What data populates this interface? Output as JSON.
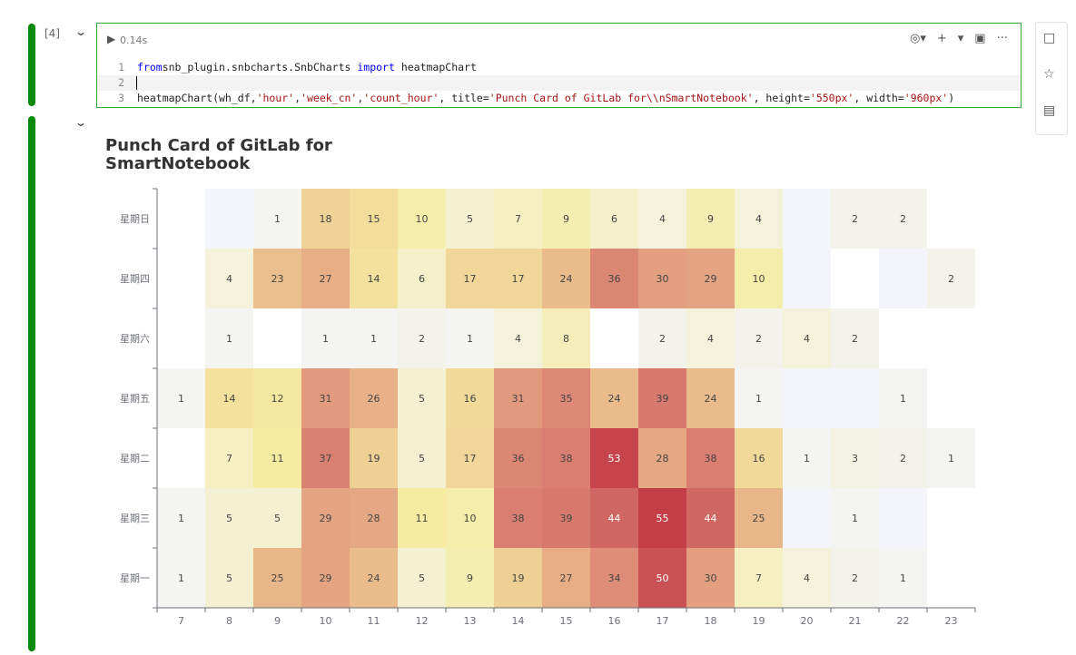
{
  "cell1": {
    "exec_count": "[4]",
    "run_time": "0.14s",
    "code_lines": [
      {
        "num": "1",
        "parts": [
          [
            "kw",
            "from"
          ],
          [
            "",
            "snb_plugin.snbcharts.SnbCharts "
          ],
          [
            "kw",
            "import"
          ],
          [
            "",
            " heatmapChart"
          ]
        ]
      },
      {
        "num": "2",
        "parts": []
      },
      {
        "num": "3",
        "parts": [
          [
            "",
            "heatmapChart(wh_df,"
          ],
          [
            "str",
            "'hour'"
          ],
          [
            "",
            ","
          ],
          [
            "str",
            "'week_cn'"
          ],
          [
            "",
            ","
          ],
          [
            "str",
            "'count_hour'"
          ],
          [
            "",
            ", title="
          ],
          [
            "str",
            "'Punch Card of GitLab for\\\\nSmartNotebook'"
          ],
          [
            "",
            ", height="
          ],
          [
            "str",
            "'550px'"
          ],
          [
            "",
            ", width="
          ],
          [
            "str",
            "'960px'"
          ],
          [
            "",
            ")"
          ]
        ]
      }
    ],
    "toolbar": {
      "eye_icon": "eye-icon",
      "add_icon": "plus-icon",
      "more_arrow_icon": "caret-down-icon",
      "delete_icon": "trash-icon",
      "menu_icon": "ellipsis-icon"
    }
  },
  "side_tools": [
    "comment-icon",
    "star-icon",
    "code-panel-icon"
  ],
  "chart_data": {
    "type": "heatmap",
    "title_lines": [
      "Punch Card of GitLab for",
      "SmartNotebook"
    ],
    "x": [
      "7",
      "8",
      "9",
      "10",
      "11",
      "12",
      "13",
      "14",
      "15",
      "16",
      "17",
      "18",
      "19",
      "20",
      "21",
      "22",
      "23"
    ],
    "y": [
      "星期日",
      "星期四",
      "星期六",
      "星期五",
      "星期二",
      "星期三",
      "星期一"
    ],
    "values": [
      [
        null,
        0,
        1,
        18,
        15,
        10,
        5,
        7,
        9,
        6,
        4,
        9,
        4,
        0,
        2,
        2,
        null
      ],
      [
        null,
        4,
        23,
        27,
        14,
        6,
        17,
        17,
        24,
        36,
        30,
        29,
        10,
        0,
        null,
        0,
        2
      ],
      [
        null,
        1,
        null,
        1,
        1,
        2,
        1,
        4,
        8,
        null,
        2,
        4,
        2,
        4,
        2,
        null,
        null
      ],
      [
        1,
        14,
        12,
        31,
        26,
        5,
        16,
        31,
        35,
        24,
        39,
        24,
        1,
        0,
        0,
        1,
        null
      ],
      [
        null,
        7,
        11,
        37,
        19,
        5,
        17,
        36,
        38,
        53,
        28,
        38,
        16,
        1,
        3,
        2,
        1
      ],
      [
        1,
        5,
        5,
        29,
        28,
        11,
        10,
        38,
        39,
        44,
        55,
        44,
        25,
        0,
        1,
        0,
        null
      ],
      [
        1,
        5,
        25,
        29,
        24,
        5,
        9,
        19,
        27,
        34,
        50,
        30,
        7,
        4,
        2,
        1,
        null
      ]
    ],
    "color_range": {
      "min": 0,
      "max": 55
    },
    "palette": [
      "#f4f5fb",
      "#f5eca2",
      "#ecc48f",
      "#e0917a",
      "#d06763",
      "#c43e47"
    ]
  }
}
